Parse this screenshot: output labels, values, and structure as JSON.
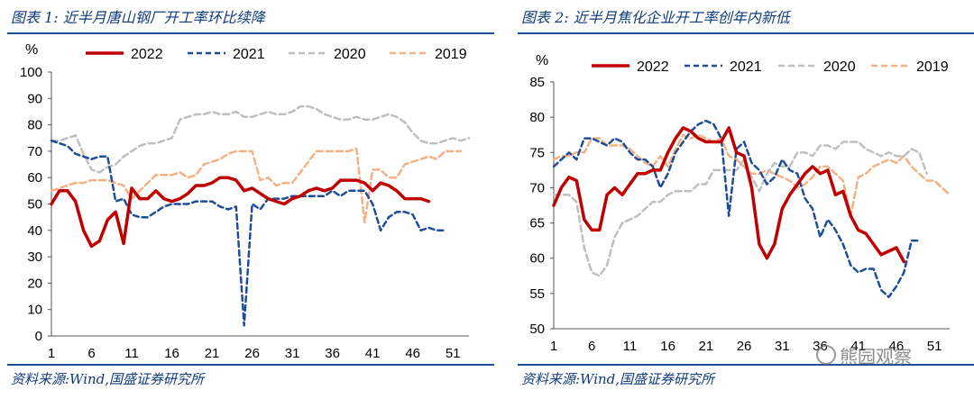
{
  "colors": {
    "s2022": "#c00000",
    "s2021": "#1f4e99",
    "s2020": "#bfbfbf",
    "s2019": "#f4b183",
    "rule": "#1f4e99",
    "title": "#0f3b7a"
  },
  "watermark": "熊园观察",
  "chart_data": [
    {
      "type": "line",
      "title": "图表 1:  近半月唐山钢厂开工率环比续降",
      "source": "资料来源:Wind,国盛证券研究所",
      "ylabel": "%",
      "ylim": [
        0,
        100
      ],
      "yticks": [
        0,
        10,
        20,
        30,
        40,
        50,
        60,
        70,
        80,
        90,
        100
      ],
      "xlim": [
        1,
        53
      ],
      "xticks": [
        1,
        6,
        11,
        16,
        21,
        26,
        31,
        36,
        41,
        46,
        51
      ],
      "legend": "top",
      "series": [
        {
          "name": "2022",
          "color": "#c00000",
          "dash": "",
          "width": 3.5,
          "values": [
            50,
            55,
            55,
            51,
            40,
            34,
            36,
            44,
            47,
            35,
            56,
            52,
            52,
            55,
            52,
            51,
            52,
            54,
            57,
            57,
            58,
            60,
            60,
            59,
            55,
            56,
            54,
            52,
            51,
            50,
            52,
            53,
            55,
            56,
            55,
            56,
            59,
            59,
            59,
            58,
            55,
            58,
            57,
            55,
            52,
            52,
            52,
            51
          ]
        },
        {
          "name": "2021",
          "color": "#1f4e99",
          "dash": "6,4",
          "width": 2.5,
          "values": [
            74,
            73,
            72,
            69,
            68,
            67,
            68,
            68,
            51,
            52,
            46,
            45,
            45,
            47,
            49,
            50,
            50,
            50,
            51,
            51,
            51,
            49,
            48,
            49,
            4,
            50,
            48,
            52,
            52,
            52,
            53,
            53,
            53,
            53,
            53,
            55,
            53,
            55,
            55,
            55,
            50,
            40,
            45,
            47,
            47,
            46,
            40,
            41,
            40,
            40
          ]
        },
        {
          "name": "2020",
          "color": "#bfbfbf",
          "dash": "7,4",
          "width": 2.5,
          "values": [
            74,
            74,
            75,
            76,
            69,
            63,
            62,
            64,
            65,
            68,
            70,
            72,
            73,
            73,
            74,
            75,
            82,
            83,
            84,
            84,
            85,
            84,
            84,
            85,
            83,
            83,
            84,
            85,
            84,
            84,
            85,
            87,
            87,
            86,
            84,
            83,
            82,
            82,
            83,
            82,
            82,
            83,
            84,
            83,
            81,
            77,
            74,
            73,
            73,
            74,
            75,
            74,
            75
          ]
        },
        {
          "name": "2019",
          "color": "#f4b183",
          "dash": "7,4",
          "width": 2.5,
          "values": [
            55,
            56,
            57,
            58,
            58,
            59,
            59,
            59,
            58,
            57,
            52,
            55,
            58,
            61,
            61,
            61,
            62,
            60,
            61,
            65,
            66,
            67,
            69,
            70,
            70,
            70,
            59,
            60,
            57,
            58,
            58,
            62,
            66,
            70,
            70,
            70,
            70,
            70,
            71,
            43,
            63,
            63,
            60,
            60,
            65,
            66,
            67,
            68,
            67,
            70,
            70,
            70
          ]
        }
      ]
    },
    {
      "type": "line",
      "title": "图表 2:  近半月焦化企业开工率创年内新低",
      "source": "资料来源:Wind,国盛证券研究所",
      "ylabel": "%",
      "ylim": [
        50,
        85
      ],
      "yticks": [
        50,
        55,
        60,
        65,
        70,
        75,
        80,
        85
      ],
      "xlim": [
        1,
        53
      ],
      "xticks": [
        1,
        6,
        11,
        16,
        21,
        26,
        31,
        36,
        41,
        46,
        51
      ],
      "legend": "top",
      "series": [
        {
          "name": "2022",
          "color": "#c00000",
          "dash": "",
          "width": 3.5,
          "values": [
            67.5,
            70,
            71.5,
            71,
            65.5,
            64,
            64,
            69,
            70,
            69,
            70.5,
            72,
            72,
            72.5,
            72.5,
            75,
            77,
            78.5,
            78,
            77,
            76.5,
            76.5,
            76.5,
            78.5,
            75,
            74.5,
            70,
            62,
            60,
            62,
            67,
            69,
            70.5,
            72,
            73,
            72,
            72.5,
            69,
            69.5,
            66,
            64,
            63.5,
            62,
            60.5,
            61,
            61.5,
            59.5
          ]
        },
        {
          "name": "2021",
          "color": "#1f4e99",
          "dash": "6,4",
          "width": 2.5,
          "values": [
            73,
            74,
            75,
            74,
            77,
            77,
            76.5,
            76,
            77,
            76.5,
            75,
            74,
            74,
            73,
            70,
            72,
            75,
            76.5,
            78,
            79,
            79.5,
            79,
            77,
            66,
            75.5,
            76.5,
            73.5,
            72.5,
            70.5,
            71.5,
            74,
            72.5,
            72,
            68.5,
            67,
            63,
            65.5,
            64,
            62,
            59,
            58,
            58.5,
            58.5,
            55.5,
            54.5,
            56,
            58,
            62.5,
            62.5
          ]
        },
        {
          "name": "2020",
          "color": "#bfbfbf",
          "dash": "7,4",
          "width": 2.5,
          "values": [
            69,
            69,
            69,
            68,
            61.5,
            58,
            57.5,
            59,
            63,
            65,
            65.5,
            66,
            67,
            68,
            68,
            69,
            69.5,
            69.5,
            69.5,
            70.5,
            70.5,
            72.5,
            72.5,
            72.5,
            72.5,
            74,
            71.5,
            69.5,
            72,
            73.5,
            73,
            73,
            75,
            75,
            74.5,
            76,
            76,
            75.5,
            76.5,
            76.5,
            76.5,
            75.5,
            75,
            74.5,
            75,
            74.5,
            74.5,
            75.5,
            75,
            72
          ]
        },
        {
          "name": "2019",
          "color": "#f4b183",
          "dash": "7,4",
          "width": 2.5,
          "values": [
            74,
            74.5,
            74.5,
            75,
            75,
            77,
            77,
            76,
            76,
            76,
            75.5,
            74.5,
            73.5,
            73,
            74.5,
            73,
            75.5,
            77.5,
            77,
            77.5,
            77,
            76.5,
            77,
            74.5,
            74,
            73,
            72,
            72,
            72.5,
            72,
            71.5,
            71,
            70,
            70.5,
            71.5,
            73,
            73,
            72,
            71,
            66,
            71.5,
            72,
            73,
            73.5,
            74,
            73.5,
            74.5,
            73,
            72,
            71,
            71,
            70,
            69
          ]
        }
      ]
    }
  ]
}
